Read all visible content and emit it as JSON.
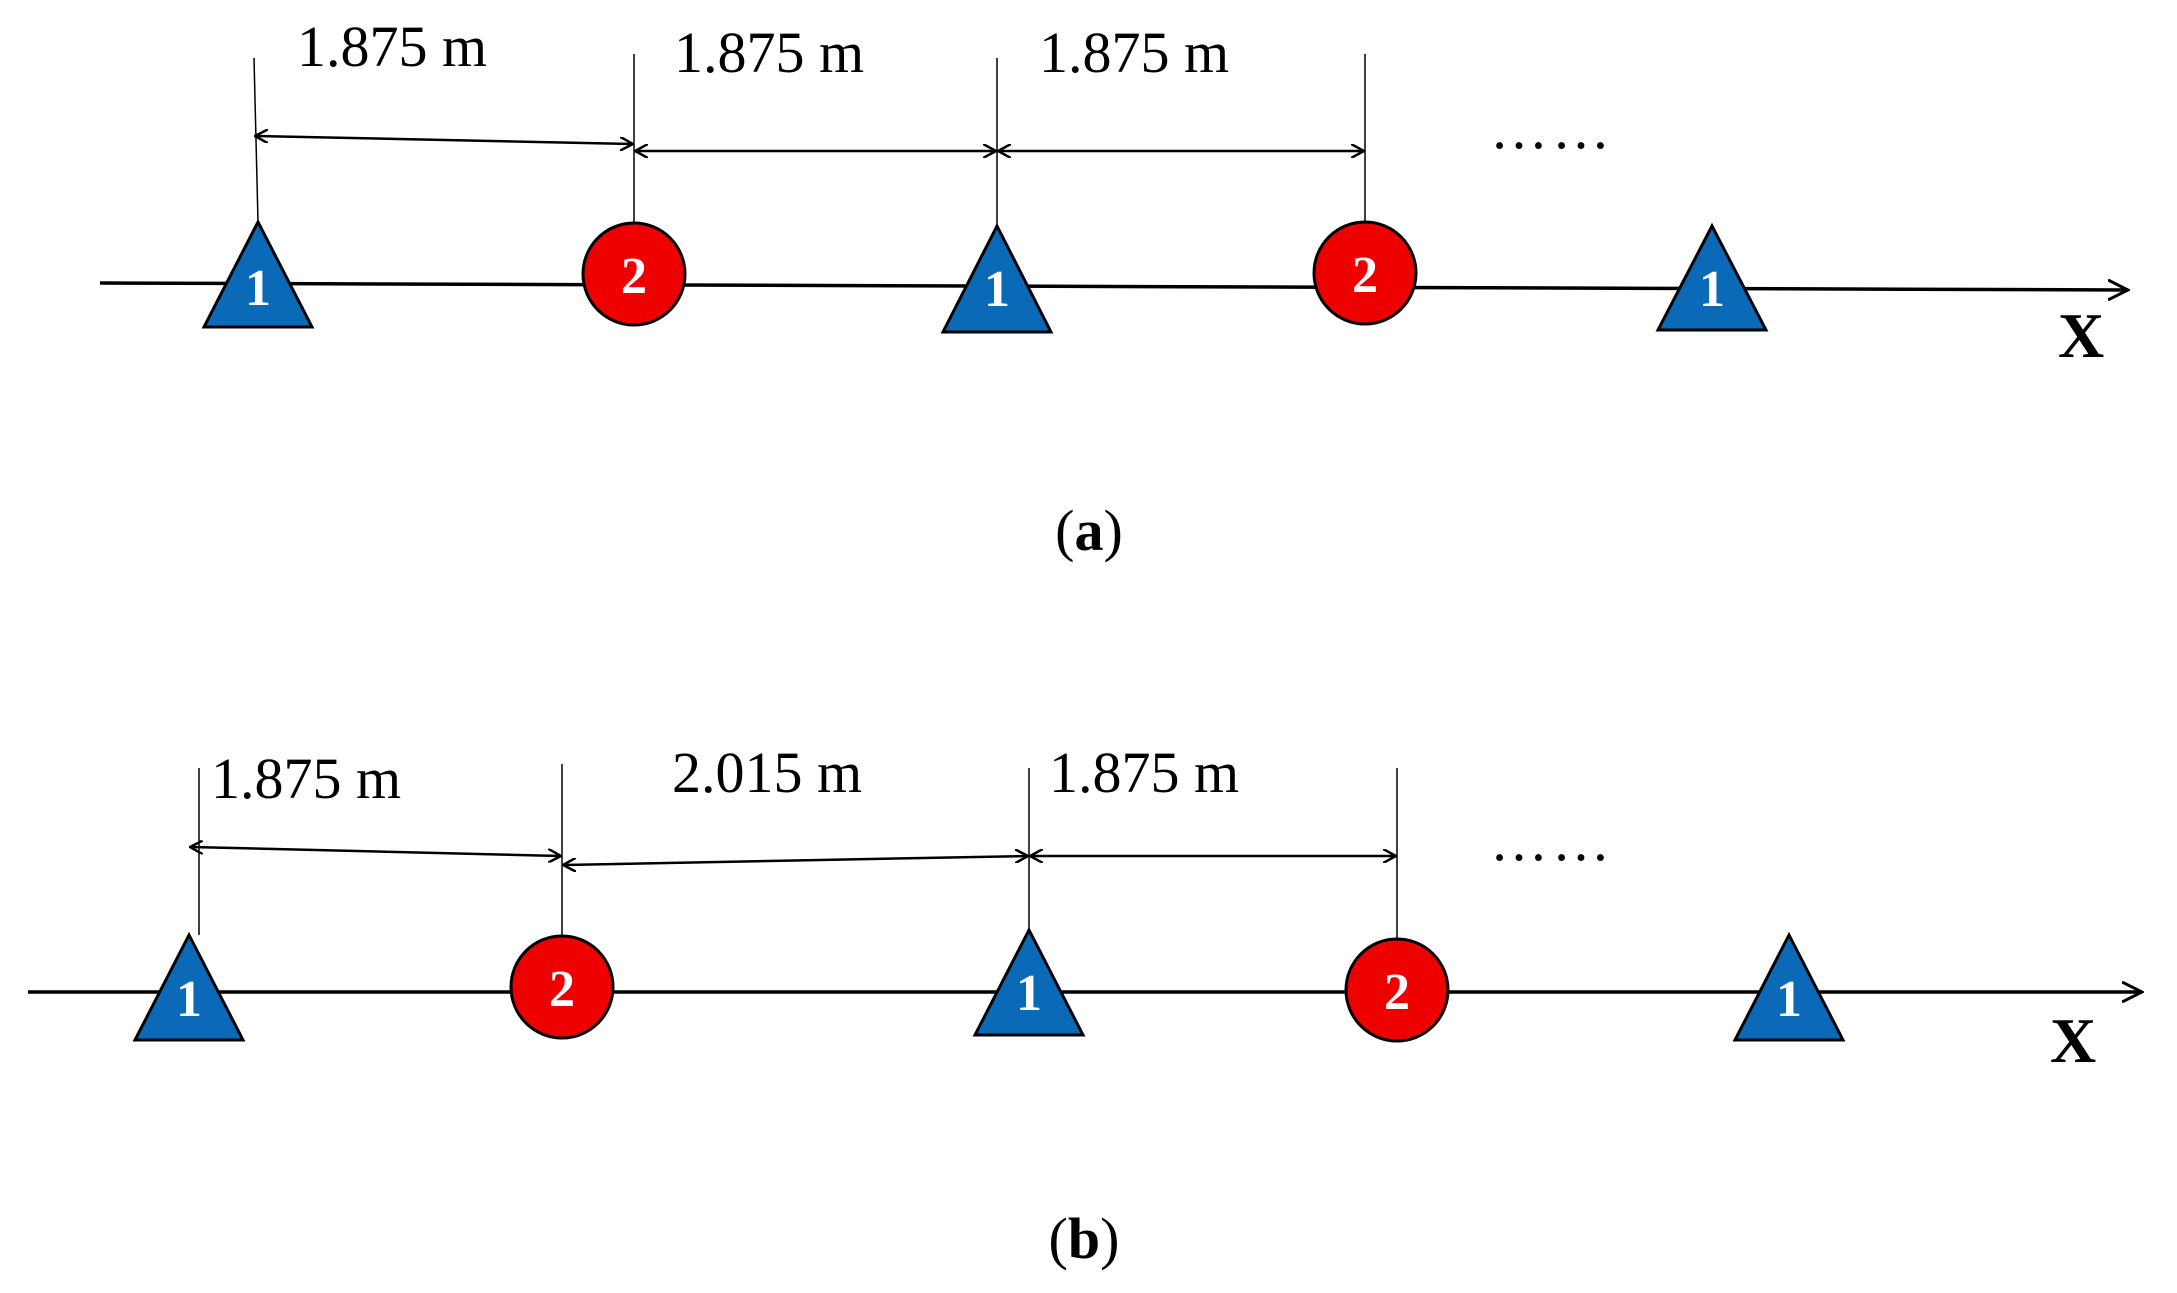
{
  "colors": {
    "type1_fill": "#0b6ab8",
    "type2_fill": "#ee0000",
    "stroke": "#000000"
  },
  "panels": [
    {
      "caption_letter": "a",
      "axis_label": "X",
      "ellipsis": "……",
      "markers": [
        {
          "kind": "triangle",
          "label": "1"
        },
        {
          "kind": "circle",
          "label": "2"
        },
        {
          "kind": "triangle",
          "label": "1"
        },
        {
          "kind": "circle",
          "label": "2"
        },
        {
          "kind": "triangle",
          "label": "1"
        }
      ],
      "spacings": [
        "1.875 m",
        "1.875 m",
        "1.875 m"
      ]
    },
    {
      "caption_letter": "b",
      "axis_label": "X",
      "ellipsis": "……",
      "markers": [
        {
          "kind": "triangle",
          "label": "1"
        },
        {
          "kind": "circle",
          "label": "2"
        },
        {
          "kind": "triangle",
          "label": "1"
        },
        {
          "kind": "circle",
          "label": "2"
        },
        {
          "kind": "triangle",
          "label": "1"
        }
      ],
      "spacings": [
        "1.875 m",
        "2.015 m",
        "1.875 m"
      ]
    }
  ]
}
